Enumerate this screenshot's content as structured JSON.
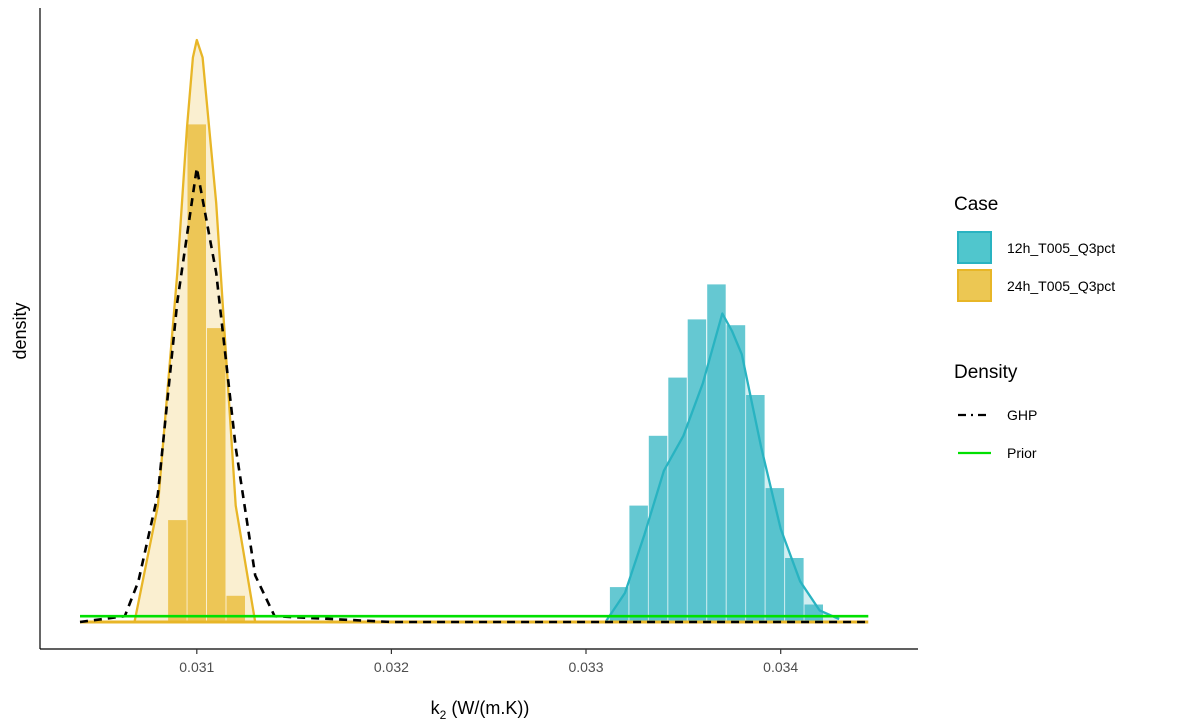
{
  "chart_data": {
    "type": "histogram+density",
    "xlabel": {
      "base": "k",
      "sub": "2",
      "rest": " (W/(m.K))"
    },
    "ylabel": "density",
    "xlim": [
      0.0304,
      0.0345
    ],
    "xticks": [
      0.031,
      0.032,
      0.033,
      0.034
    ],
    "xtick_labels": [
      "0.031",
      "0.032",
      "0.033",
      "0.034"
    ],
    "ylim": [
      0,
      1
    ],
    "y_ticks_shown": false,
    "grid": false,
    "legend_position": "right",
    "legend": {
      "case_title": "Case",
      "case_entries": [
        {
          "label": "12h_T005_Q3pct",
          "color": "#29b3c1"
        },
        {
          "label": "24h_T005_Q3pct",
          "color": "#e8b627"
        }
      ],
      "density_title": "Density",
      "density_entries": [
        {
          "label": "GHP",
          "color": "#000000",
          "style": "dashed"
        },
        {
          "label": "Prior",
          "color": "#00e000",
          "style": "solid"
        }
      ]
    },
    "series": [
      {
        "name": "24h_T005_Q3pct",
        "color": "#e8b627",
        "bin_width": 0.0001,
        "histogram": {
          "x": [
            0.0309,
            0.031,
            0.0311,
            0.0312
          ],
          "y": [
            0.175,
            0.855,
            0.505,
            0.045
          ]
        },
        "density": {
          "x": [
            0.03068,
            0.0308,
            0.0309,
            0.03095,
            0.03098,
            0.031,
            0.03103,
            0.0311,
            0.0312,
            0.0313
          ],
          "y": [
            0.0,
            0.2,
            0.6,
            0.85,
            0.97,
            1.0,
            0.97,
            0.72,
            0.2,
            0.0
          ]
        }
      },
      {
        "name": "12h_T005_Q3pct",
        "color": "#29b3c1",
        "bin_width": 0.0001,
        "histogram": {
          "x": [
            0.03317,
            0.03327,
            0.03337,
            0.03347,
            0.03357,
            0.03367,
            0.03377,
            0.03387,
            0.03397,
            0.03407,
            0.03417
          ],
          "y": [
            0.06,
            0.2,
            0.32,
            0.42,
            0.52,
            0.58,
            0.51,
            0.39,
            0.23,
            0.11,
            0.03
          ]
        },
        "density": {
          "x": [
            0.0331,
            0.0332,
            0.0333,
            0.0334,
            0.0335,
            0.0336,
            0.0337,
            0.03375,
            0.0338,
            0.0339,
            0.034,
            0.0341,
            0.0342,
            0.0343
          ],
          "y": [
            0.0,
            0.05,
            0.15,
            0.26,
            0.32,
            0.41,
            0.53,
            0.5,
            0.46,
            0.3,
            0.16,
            0.07,
            0.02,
            0.005
          ]
        }
      }
    ],
    "density_lines": [
      {
        "name": "GHP",
        "style": "dashed",
        "color": "#000000",
        "x": [
          0.0304,
          0.03063,
          0.0307,
          0.0308,
          0.0309,
          0.031,
          0.0311,
          0.0312,
          0.0313,
          0.0314,
          0.032,
          0.0333,
          0.03445
        ],
        "y": [
          0.0,
          0.01,
          0.07,
          0.22,
          0.55,
          0.78,
          0.6,
          0.3,
          0.08,
          0.01,
          0.0,
          0.0,
          0.0
        ]
      },
      {
        "name": "Prior",
        "style": "solid",
        "color": "#00e000",
        "x": [
          0.0304,
          0.03445
        ],
        "y": [
          0.01,
          0.01
        ]
      }
    ]
  }
}
